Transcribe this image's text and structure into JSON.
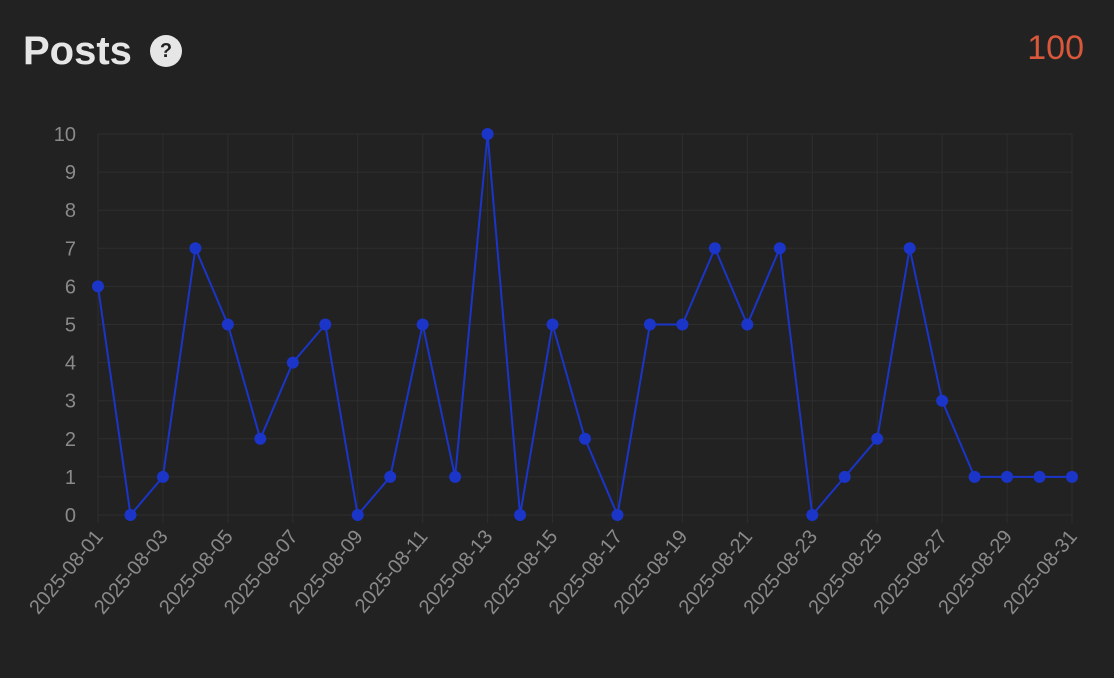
{
  "header": {
    "title": "Posts",
    "help_glyph": "?",
    "total": "100"
  },
  "colors": {
    "background": "#222222",
    "line": "#1a35c8",
    "point": "#1a35c8",
    "grid": "#2e2e2e",
    "tick": "#8a8a8a",
    "total": "#d9583c"
  },
  "chart_data": {
    "type": "line",
    "title": "",
    "xlabel": "",
    "ylabel": "",
    "ylim": [
      0,
      10
    ],
    "yticks": [
      0,
      1,
      2,
      3,
      4,
      5,
      6,
      7,
      8,
      9,
      10
    ],
    "grid": true,
    "x": [
      "2025-08-01",
      "2025-08-02",
      "2025-08-03",
      "2025-08-04",
      "2025-08-05",
      "2025-08-06",
      "2025-08-07",
      "2025-08-08",
      "2025-08-09",
      "2025-08-10",
      "2025-08-11",
      "2025-08-12",
      "2025-08-13",
      "2025-08-14",
      "2025-08-15",
      "2025-08-16",
      "2025-08-17",
      "2025-08-18",
      "2025-08-19",
      "2025-08-20",
      "2025-08-21",
      "2025-08-22",
      "2025-08-23",
      "2025-08-24",
      "2025-08-25",
      "2025-08-26",
      "2025-08-27",
      "2025-08-28",
      "2025-08-29",
      "2025-08-30",
      "2025-08-31"
    ],
    "xticks": [
      "2025-08-01",
      "2025-08-03",
      "2025-08-05",
      "2025-08-07",
      "2025-08-09",
      "2025-08-11",
      "2025-08-13",
      "2025-08-15",
      "2025-08-17",
      "2025-08-19",
      "2025-08-21",
      "2025-08-23",
      "2025-08-25",
      "2025-08-27",
      "2025-08-29",
      "2025-08-31"
    ],
    "series": [
      {
        "values": [
          6,
          0,
          1,
          7,
          5,
          2,
          4,
          5,
          0,
          1,
          5,
          1,
          10,
          0,
          5,
          2,
          0,
          5,
          5,
          7,
          5,
          7,
          0,
          1,
          2,
          7,
          3,
          1,
          1,
          1,
          1
        ]
      }
    ]
  }
}
